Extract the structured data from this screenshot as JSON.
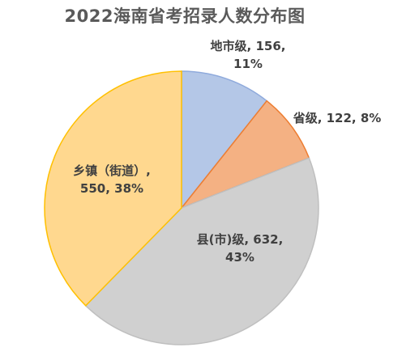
{
  "chart_data": {
    "type": "pie",
    "title": "2022海南省考招录人数分布图",
    "slices": [
      {
        "name": "地市级",
        "value": 156,
        "percent": "11%",
        "label_lines": [
          "地市级, 156,",
          "11%"
        ],
        "fill": "#b4c7e7",
        "stroke": "#8faadc"
      },
      {
        "name": "省级",
        "value": 122,
        "percent": "8%",
        "label_lines": [
          "省级, 122, 8%"
        ],
        "fill": "#f4b183",
        "stroke": "#ed7d31"
      },
      {
        "name": "县(市)级",
        "value": 632,
        "percent": "43%",
        "label_lines": [
          "县(市)级, 632,",
          "43%"
        ],
        "fill": "#d0d0d0",
        "stroke": "#bfbfbf"
      },
      {
        "name": "乡镇（街道）",
        "value": 550,
        "percent": "38%",
        "label_lines": [
          "乡镇（街道）,",
          "550, 38%"
        ],
        "fill": "#ffd88f",
        "stroke": "#ffc000"
      }
    ]
  }
}
